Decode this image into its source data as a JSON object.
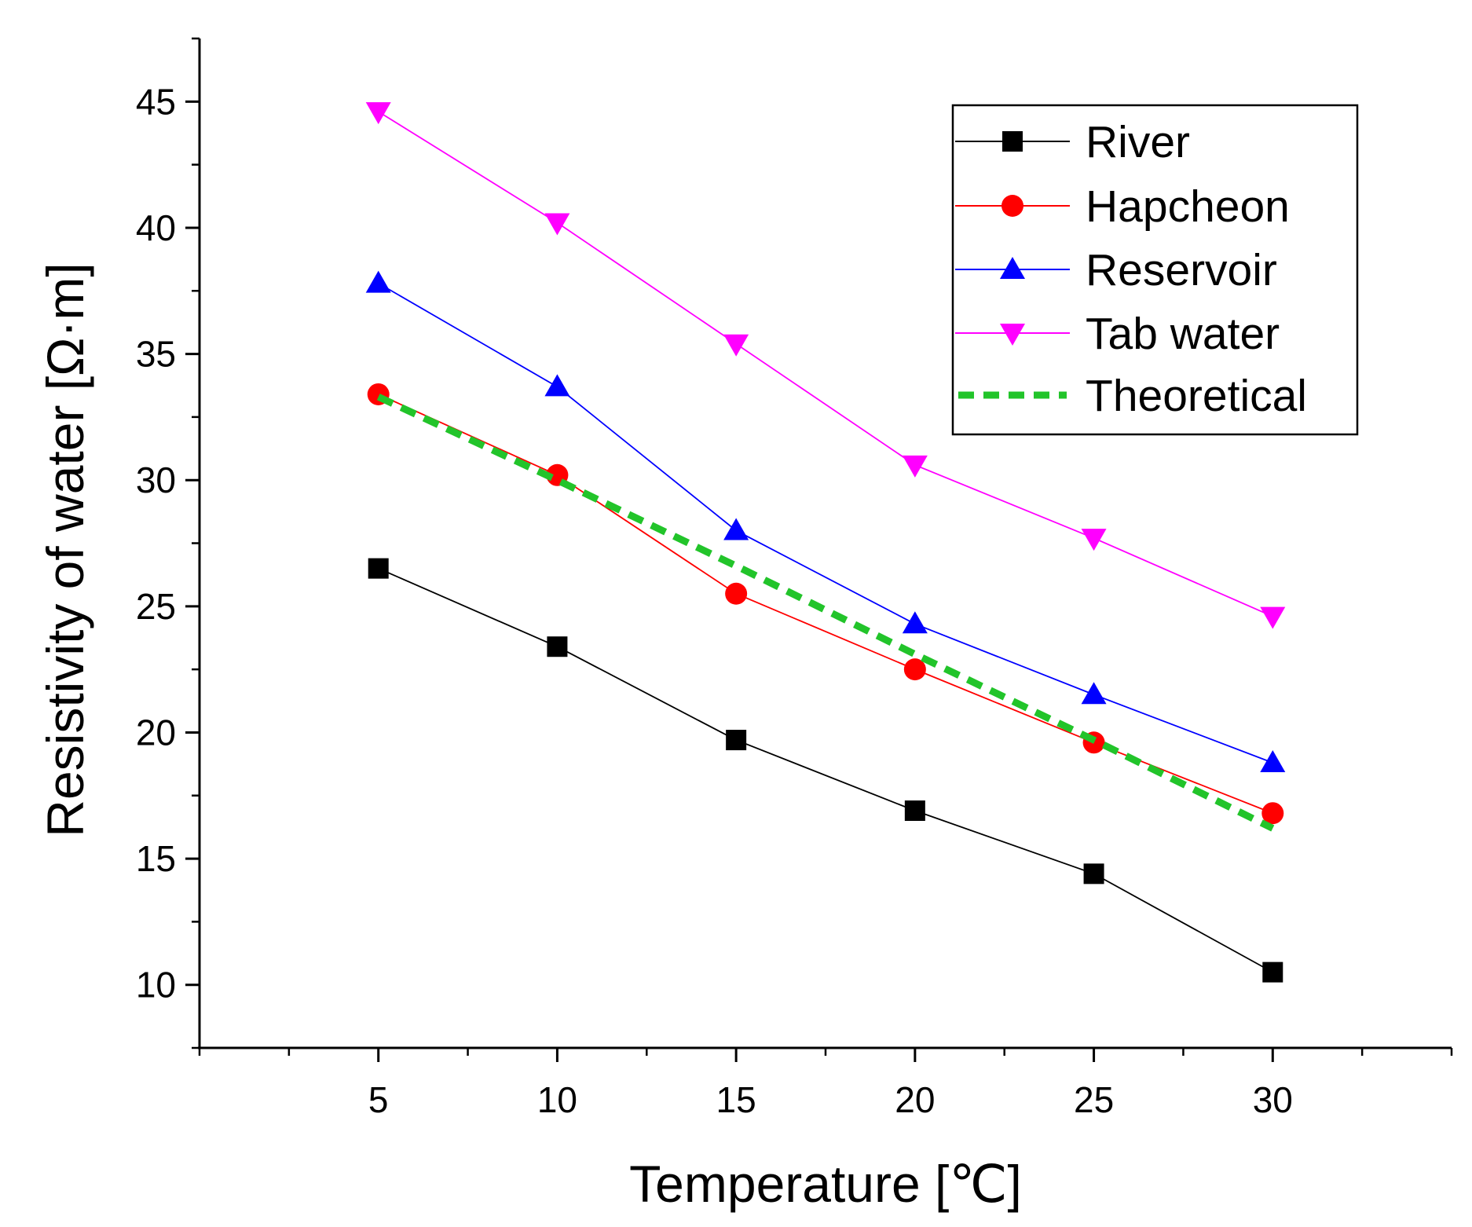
{
  "chart_data": {
    "type": "line",
    "xlabel": "Temperature [℃]",
    "ylabel": "Resistivity of water [Ω·m]",
    "xlim": [
      0,
      35
    ],
    "ylim": [
      7.5,
      47.5
    ],
    "x_ticks": [
      5,
      10,
      15,
      20,
      25,
      30
    ],
    "x_tick_labels": [
      "5",
      "10",
      "15",
      "20",
      "25",
      "30"
    ],
    "y_ticks": [
      10,
      15,
      20,
      25,
      30,
      35,
      40,
      45
    ],
    "y_tick_labels": [
      "10",
      "15",
      "20",
      "25",
      "30",
      "35",
      "40",
      "45"
    ],
    "x": [
      5,
      10,
      15,
      20,
      25,
      30
    ],
    "grid": false,
    "legend_position": "top-right",
    "series": [
      {
        "name": "River",
        "values": [
          26.5,
          23.4,
          19.7,
          16.9,
          14.4,
          10.5
        ],
        "color": "#000000",
        "marker": "square",
        "line": "solid"
      },
      {
        "name": "Hapcheon",
        "values": [
          33.4,
          30.2,
          25.5,
          22.5,
          19.6,
          16.8
        ],
        "color": "#ff0000",
        "marker": "circle",
        "line": "solid"
      },
      {
        "name": "Reservoir",
        "values": [
          37.8,
          33.7,
          28.0,
          24.3,
          21.5,
          18.8
        ],
        "color": "#0000ff",
        "marker": "triangle-up",
        "line": "solid"
      },
      {
        "name": "Tab water",
        "values": [
          44.6,
          40.2,
          35.4,
          30.6,
          27.7,
          24.6
        ],
        "color": "#ff00ff",
        "marker": "triangle-down",
        "line": "solid"
      },
      {
        "name": "Theoretical",
        "values": [
          33.3,
          30.0,
          26.6,
          23.1,
          19.7,
          16.2
        ],
        "color": "#22c42a",
        "marker": "none",
        "line": "dashed"
      }
    ]
  }
}
